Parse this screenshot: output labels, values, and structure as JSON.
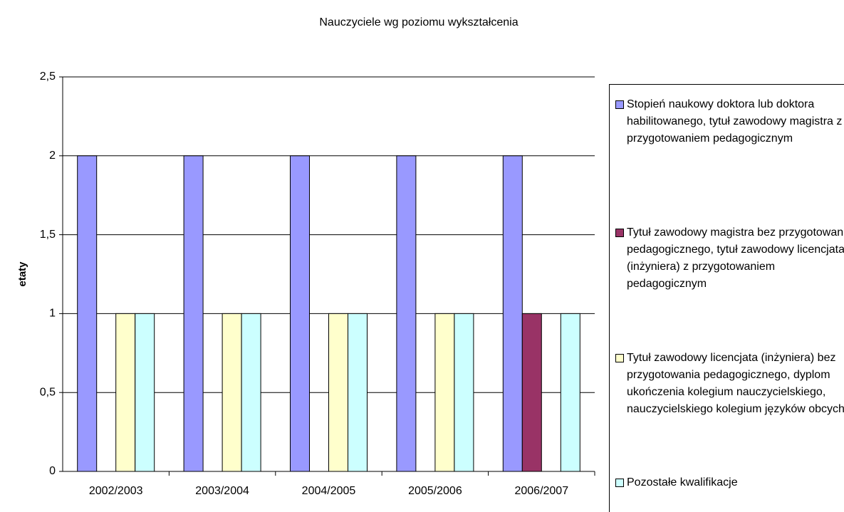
{
  "chart_data": {
    "type": "bar",
    "title": "Nauczyciele wg poziomu wykształcenia",
    "y_label": "etaty",
    "categories": [
      "2002/2003",
      "2003/2004",
      "2004/2005",
      "2005/2006",
      "2006/2007"
    ],
    "series": [
      {
        "name": "Stopień naukowy doktora lub doktora habilitowanego, tytuł zawodowy magistra z przygotowaniem pedagogicznym",
        "color": "#9999ff",
        "values": [
          2,
          2,
          2,
          2,
          2
        ]
      },
      {
        "name": "Tytuł zawodowy magistra bez przygotowania pedagogicznego, tytuł zawodowy licencjata (inżyniera) z przygotowaniem pedagogicznym",
        "color": "#993366",
        "values": [
          0,
          0,
          0,
          0,
          1
        ]
      },
      {
        "name": "Tytuł zawodowy licencjata (inżyniera) bez przygotowania pedagogicznego, dyplom ukończenia kolegium nauczycielskiego, nauczycielskiego kolegium języków obcych",
        "color": "#ffffcc",
        "values": [
          1,
          1,
          1,
          1,
          0
        ]
      },
      {
        "name": "Pozostałe kwalifikacje",
        "color": "#ccffff",
        "values": [
          1,
          1,
          1,
          1,
          1
        ]
      }
    ],
    "ylim": [
      0,
      2.5
    ],
    "yticks": [
      0,
      {
        "value": 0.5,
        "label": "0,5"
      },
      1,
      {
        "value": 1.5,
        "label": "1,5"
      },
      2,
      {
        "value": 2.5,
        "label": "2,5"
      }
    ],
    "grid": true,
    "legend": "right"
  }
}
